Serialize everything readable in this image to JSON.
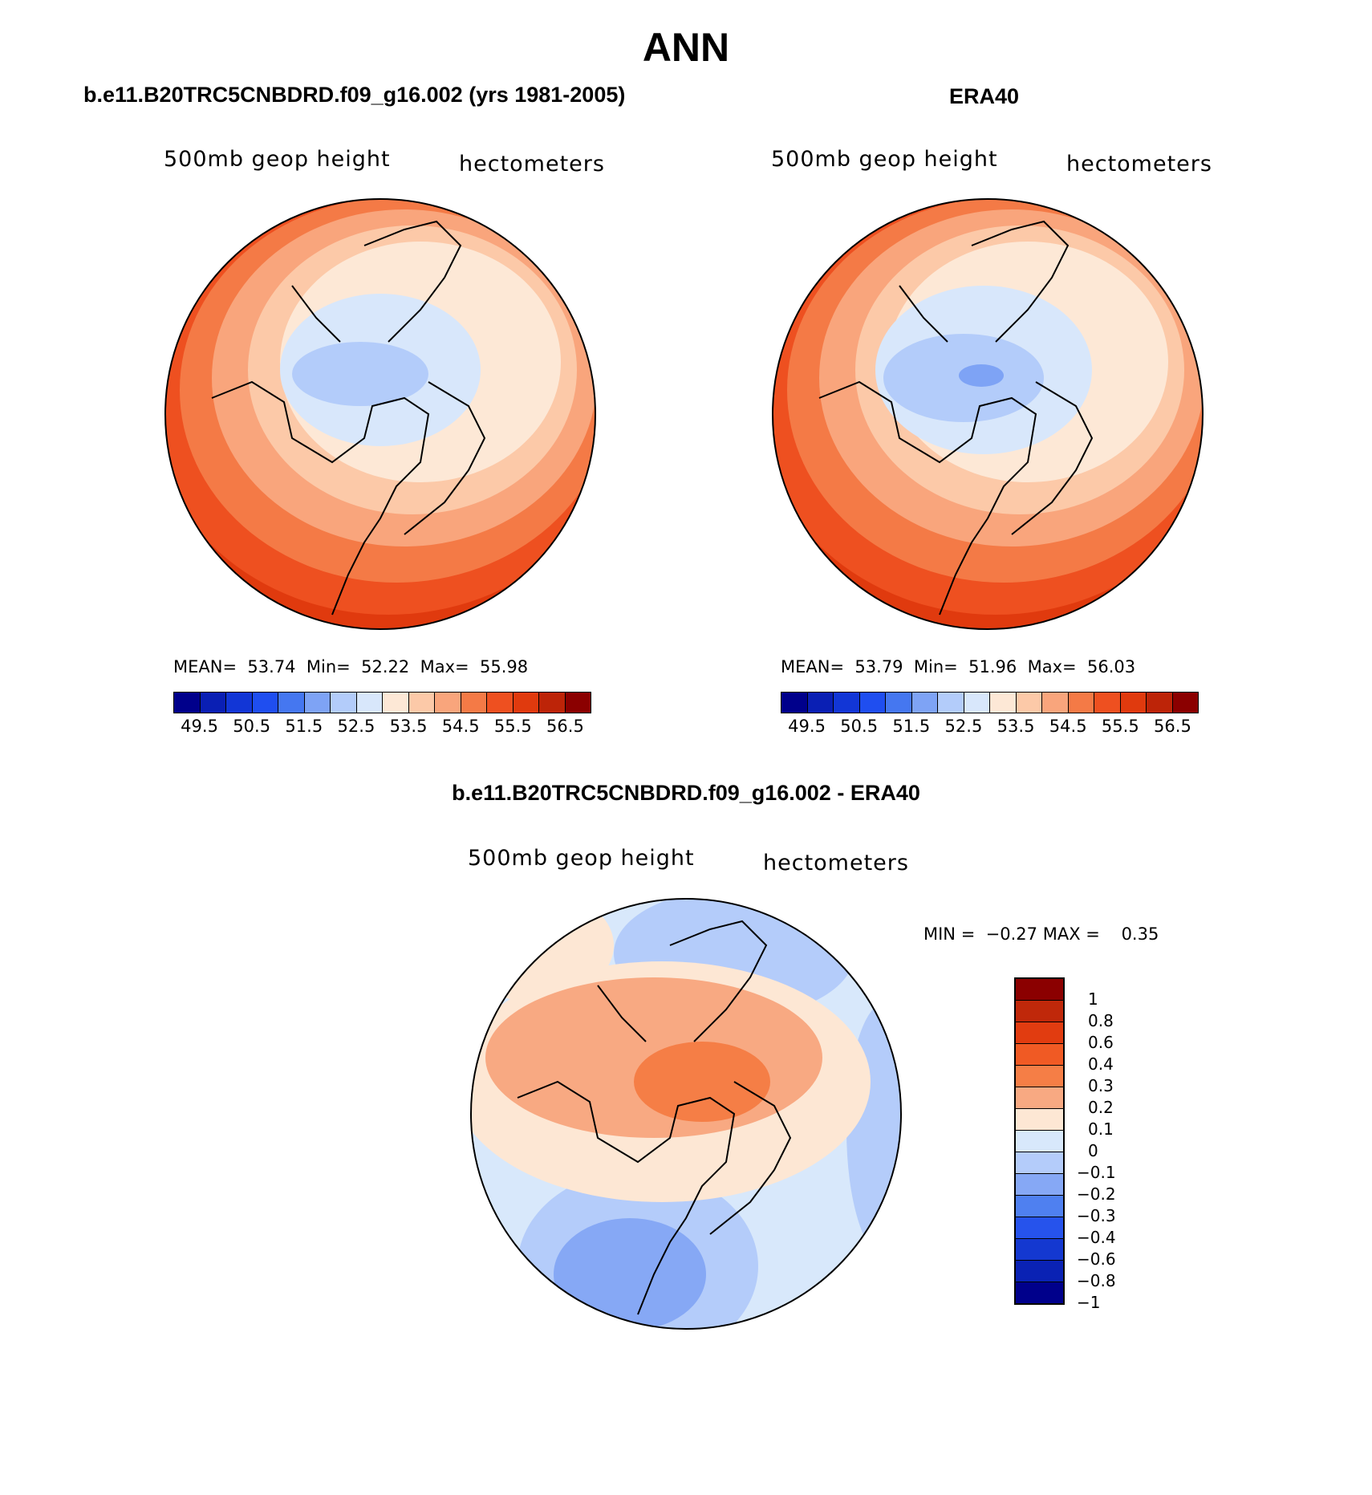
{
  "title": "ANN",
  "panels": [
    {
      "title": "b.e11.B20TRC5CNBDRD.f09_g16.002 (yrs 1981-2005)",
      "variable_label": "500mb geop height",
      "units_label": "hectometers",
      "stats": {
        "mean_label": "MEAN=",
        "mean": "53.74",
        "min_label": "Min=",
        "min": "52.22",
        "max_label": "Max=",
        "max": "55.98"
      }
    },
    {
      "title": "ERA40",
      "variable_label": "500mb geop height",
      "units_label": "hectometers",
      "stats": {
        "mean_label": "MEAN=",
        "mean": "53.79",
        "min_label": "Min=",
        "min": "51.96",
        "max_label": "Max=",
        "max": "56.03"
      }
    }
  ],
  "diff_panel": {
    "title": "b.e11.B20TRC5CNBDRD.f09_g16.002 - ERA40",
    "variable_label": "500mb geop height",
    "units_label": "hectometers",
    "stats": {
      "min_label": "MIN =",
      "min": "−0.27",
      "max_label": "MAX =",
      "max": "0.35"
    }
  },
  "colors": {
    "abs_scale": [
      "#00008b",
      "#0a1fb4",
      "#1236d6",
      "#1f4ef0",
      "#4577f0",
      "#7ea3f5",
      "#b3ccfa",
      "#d8e7fb",
      "#fde8d6",
      "#fcc9a8",
      "#f9a57c",
      "#f47a46",
      "#ee5020",
      "#e03a0e",
      "#bd2408",
      "#8b0000"
    ],
    "diff_scale": [
      "#8b0000",
      "#c0280a",
      "#e13c10",
      "#f05a24",
      "#f57e46",
      "#f8a982",
      "#fde7d4",
      "#d8e8fb",
      "#b4ccfa",
      "#86a8f5",
      "#4f80f0",
      "#2653ec",
      "#1438d0",
      "#0a22b4",
      "#00008b"
    ]
  },
  "chart_data": [
    {
      "type": "map",
      "projection": "polar stereographic (North Pole)",
      "title": "b.e11.B20TRC5CNBDRD.f09_g16.002 (yrs 1981-2005)",
      "variable": "500mb geop height",
      "units": "hectometers",
      "mean": 53.74,
      "min": 52.22,
      "max": 55.98,
      "colorbar_ticks": [
        "49.5",
        "50.5",
        "51.5",
        "52.5",
        "53.5",
        "54.5",
        "55.5",
        "56.5"
      ],
      "levels": [
        49.5,
        50,
        50.5,
        51,
        51.5,
        52,
        52.5,
        53,
        53.5,
        54,
        54.5,
        55,
        55.5,
        56,
        56.5
      ]
    },
    {
      "type": "map",
      "projection": "polar stereographic (North Pole)",
      "title": "ERA40",
      "variable": "500mb geop height",
      "units": "hectometers",
      "mean": 53.79,
      "min": 51.96,
      "max": 56.03,
      "colorbar_ticks": [
        "49.5",
        "50.5",
        "51.5",
        "52.5",
        "53.5",
        "54.5",
        "55.5",
        "56.5"
      ],
      "levels": [
        49.5,
        50,
        50.5,
        51,
        51.5,
        52,
        52.5,
        53,
        53.5,
        54,
        54.5,
        55,
        55.5,
        56,
        56.5
      ]
    },
    {
      "type": "map",
      "projection": "polar stereographic (North Pole)",
      "title": "b.e11.B20TRC5CNBDRD.f09_g16.002 - ERA40",
      "variable": "500mb geop height difference",
      "units": "hectometers",
      "min": -0.27,
      "max": 0.35,
      "colorbar_ticks": [
        "1",
        "0.8",
        "0.6",
        "0.4",
        "0.3",
        "0.2",
        "0.1",
        "0",
        "−0.1",
        "−0.2",
        "−0.3",
        "−0.4",
        "−0.6",
        "−0.8",
        "−1"
      ]
    }
  ]
}
